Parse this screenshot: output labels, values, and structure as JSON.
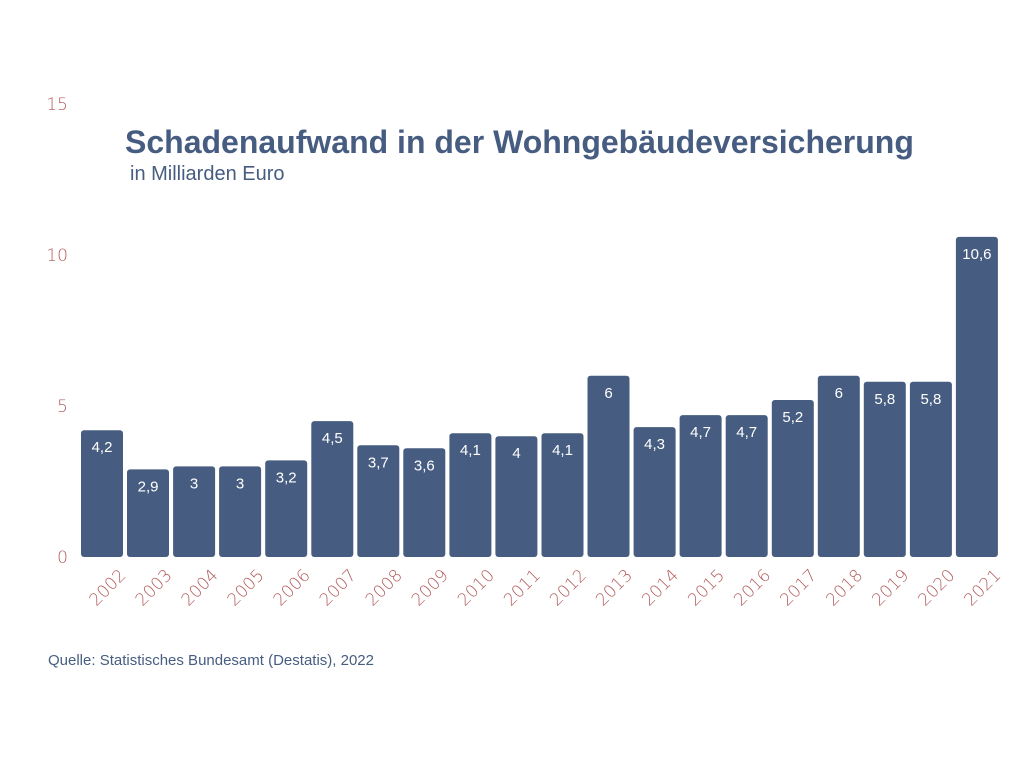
{
  "colors": {
    "bar": "#465d81",
    "title": "#465d81",
    "axis_text": "#b35c5c",
    "bar_label": "#ffffff"
  },
  "chart_data": {
    "type": "bar",
    "title": "Schadenaufwand in der Wohngebäudeversicherung",
    "subtitle": "in Milliarden Euro",
    "xlabel": "",
    "ylabel": "",
    "ylim": [
      0,
      15
    ],
    "yticks": [
      "0",
      "5",
      "10",
      "15"
    ],
    "grid": false,
    "legend": "none",
    "categories": [
      "2002",
      "2003",
      "2004",
      "2005",
      "2006",
      "2007",
      "2008",
      "2009",
      "2010",
      "2011",
      "2012",
      "2013",
      "2014",
      "2015",
      "2016",
      "2017",
      "2018",
      "2019",
      "2020",
      "2021"
    ],
    "values": [
      4.2,
      2.9,
      3,
      3,
      3.2,
      4.5,
      3.7,
      3.6,
      4.1,
      4,
      4.1,
      6,
      4.3,
      4.7,
      4.7,
      5.2,
      6,
      5.8,
      5.8,
      10.6
    ],
    "data_labels": [
      "4,2",
      "2,9",
      "3",
      "3",
      "3,2",
      "4,5",
      "3,7",
      "3,6",
      "4,1",
      "4",
      "4,1",
      "6",
      "4,3",
      "4,7",
      "4,7",
      "5,2",
      "6",
      "5,8",
      "5,8",
      "10,6"
    ],
    "source": "Quelle: Statistisches Bundesamt (Destatis), 2022"
  }
}
